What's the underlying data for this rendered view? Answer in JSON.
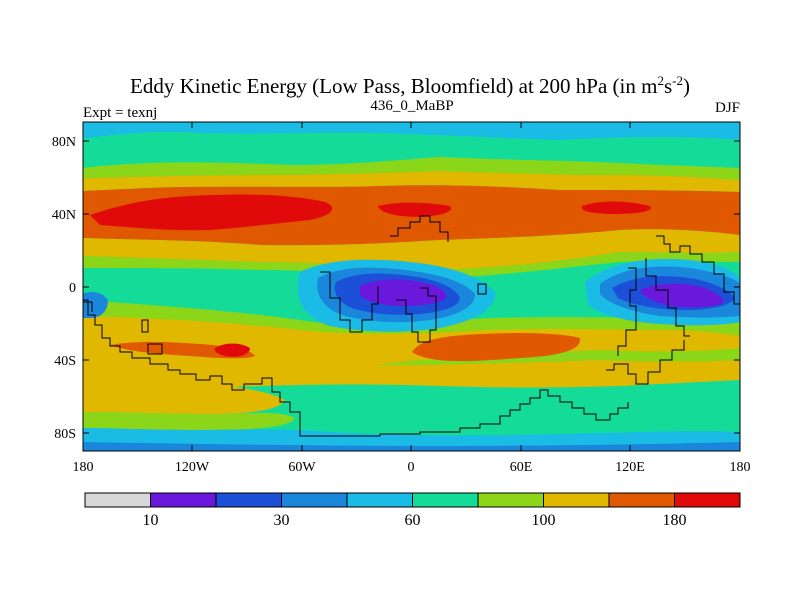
{
  "title": {
    "main": "Eddy Kinetic Energy (Low Pass, Bloomfield) at 200 hPa (in m",
    "unit_exp1": "2",
    "unit_mid": "s",
    "unit_exp2": "-2",
    "unit_close": ")"
  },
  "subtitle": {
    "left": "Expt = texnj",
    "center": "436_0_MaBP",
    "right": "DJF"
  },
  "axes": {
    "y_ticks": [
      "80N",
      "40N",
      "0",
      "40S",
      "80S"
    ],
    "x_ticks": [
      "180",
      "120W",
      "60W",
      "0",
      "60E",
      "120E",
      "180"
    ]
  },
  "colorbar": {
    "labels": [
      "10",
      "30",
      "60",
      "100",
      "180"
    ],
    "colors": [
      "#d8d8d8",
      "#6a18dc",
      "#1c50d8",
      "#1a86dc",
      "#1abce6",
      "#14dc98",
      "#8cd61a",
      "#e0b800",
      "#e05800",
      "#e00a0a"
    ]
  },
  "palette": {
    "c1": "#6a18dc",
    "c2": "#1c50d8",
    "c3": "#1a86dc",
    "c4": "#1abce6",
    "c5": "#14dc98",
    "c6": "#8cd61a",
    "c7": "#e0b800",
    "c8": "#e05800",
    "c9": "#e00a0a"
  }
}
